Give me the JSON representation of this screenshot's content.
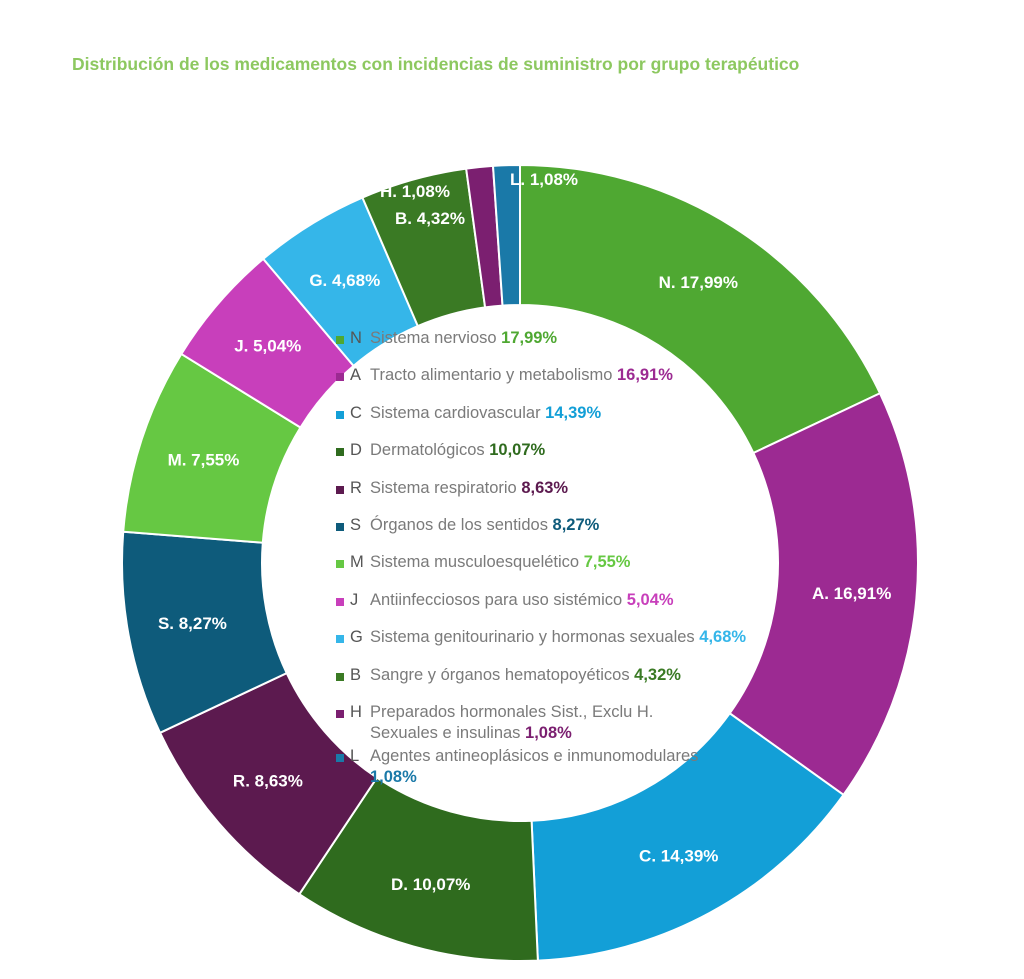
{
  "chart_data": {
    "type": "pie",
    "variant": "donut",
    "title": "Distribución de los medicamentos con incidencias de suministro por grupo terapéutico",
    "start": "top",
    "direction": "clockwise",
    "slices": [
      {
        "code": "N",
        "name": "Sistema nervioso",
        "value": 17.99,
        "label": "17,99%",
        "color": "#4fa832"
      },
      {
        "code": "A",
        "name": "Tracto alimentario y metabolismo",
        "value": 16.91,
        "label": "16,91%",
        "color": "#9c2a92"
      },
      {
        "code": "C",
        "name": "Sistema cardiovascular",
        "value": 14.39,
        "label": "14,39%",
        "color": "#139fd7"
      },
      {
        "code": "D",
        "name": "Dermatológicos",
        "value": 10.07,
        "label": "10,07%",
        "color": "#2f6b1e"
      },
      {
        "code": "R",
        "name": "Sistema respiratorio",
        "value": 8.63,
        "label": "8,63%",
        "color": "#5c1a4f"
      },
      {
        "code": "S",
        "name": "Órganos de los sentidos",
        "value": 8.27,
        "label": "8,27%",
        "color": "#0e5b7b"
      },
      {
        "code": "M",
        "name": "Sistema musculoesquelético",
        "value": 7.55,
        "label": "7,55%",
        "color": "#66c843"
      },
      {
        "code": "J",
        "name": "Antiinfecciosos para uso sistémico",
        "value": 5.04,
        "label": "5,04%",
        "color": "#c83fbb"
      },
      {
        "code": "G",
        "name": "Sistema genitourinario y hormonas sexuales",
        "value": 4.68,
        "label": "4,68%",
        "color": "#35b6e9"
      },
      {
        "code": "B",
        "name": "Sangre y órganos hematopoyéticos",
        "value": 4.32,
        "label": "4,32%",
        "color": "#3a7a24"
      },
      {
        "code": "H",
        "name": "Preparados hormonales Sist., Exclu H. Sexuales e insulinas",
        "value": 1.08,
        "label": "1,08%",
        "color": "#7b1f70"
      },
      {
        "code": "L",
        "name": "Agentes antineoplásicos e inmunomodulares",
        "value": 1.08,
        "label": "1,08%",
        "color": "#1a79a8"
      }
    ],
    "legend_placement": "center"
  }
}
